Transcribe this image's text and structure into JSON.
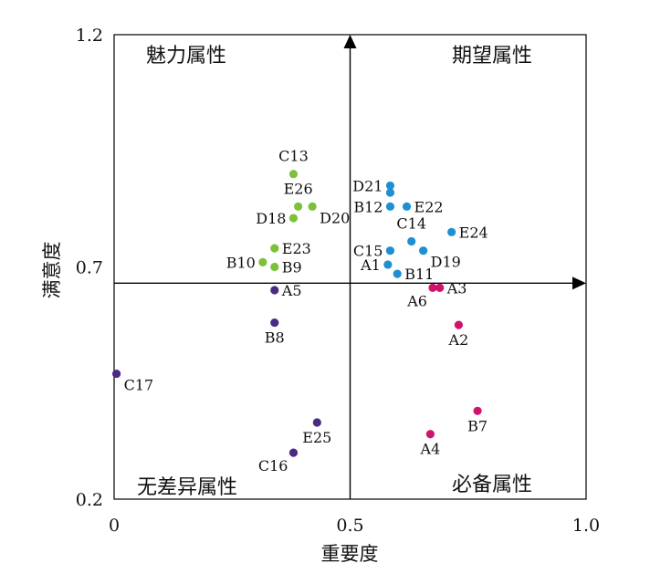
{
  "chart_data": {
    "type": "scatter",
    "xlabel": "重要度",
    "ylabel": "满意度",
    "xlim": [
      0,
      1.0
    ],
    "ylim": [
      0.2,
      1.2
    ],
    "x_ticks": [
      "0",
      "0.5",
      "1.0"
    ],
    "y_ticks": [
      "0.2",
      "0.7",
      "1.2"
    ],
    "grid": false,
    "divider": {
      "x": 0.5,
      "y": 0.665
    },
    "quadrants": {
      "top_left": "魅力属性",
      "top_right": "期望属性",
      "bottom_left": "无差异属性",
      "bottom_right": "必备属性"
    },
    "colors": {
      "attractive": "#7cc13a",
      "one_dimensional": "#1f8fd1",
      "indifferent": "#4a2a82",
      "must_be": "#d0146e"
    },
    "points": [
      {
        "label": "C13",
        "x": 0.38,
        "y": 0.9,
        "group": "attractive",
        "label_pos": "top"
      },
      {
        "label": "E26",
        "x": 0.39,
        "y": 0.83,
        "group": "attractive",
        "label_pos": "top"
      },
      {
        "label": "D18",
        "x": 0.38,
        "y": 0.805,
        "group": "attractive",
        "label_pos": "left"
      },
      {
        "label": "D20",
        "x": 0.42,
        "y": 0.83,
        "group": "attractive",
        "label_pos": "bottom-right"
      },
      {
        "label": "E23",
        "x": 0.34,
        "y": 0.74,
        "group": "attractive",
        "label_pos": "right"
      },
      {
        "label": "B10",
        "x": 0.315,
        "y": 0.71,
        "group": "attractive",
        "label_pos": "left"
      },
      {
        "label": "B9",
        "x": 0.34,
        "y": 0.7,
        "group": "attractive",
        "label_pos": "right"
      },
      {
        "label": "A5",
        "x": 0.34,
        "y": 0.65,
        "group": "indifferent",
        "label_pos": "right"
      },
      {
        "label": "B8",
        "x": 0.34,
        "y": 0.58,
        "group": "indifferent",
        "label_pos": "bottom"
      },
      {
        "label": "C17",
        "x": 0.005,
        "y": 0.47,
        "group": "indifferent",
        "label_pos": "bottom-right"
      },
      {
        "label": "E25",
        "x": 0.43,
        "y": 0.365,
        "group": "indifferent",
        "label_pos": "bottom"
      },
      {
        "label": "C16",
        "x": 0.38,
        "y": 0.3,
        "group": "indifferent",
        "label_pos": "bottom-left"
      },
      {
        "label": "D21",
        "x": 0.585,
        "y": 0.875,
        "group": "one_dimensional",
        "label_pos": "left"
      },
      {
        "label": "",
        "x": 0.585,
        "y": 0.86,
        "group": "one_dimensional",
        "label_pos": "none"
      },
      {
        "label": "E22",
        "x": 0.62,
        "y": 0.83,
        "group": "one_dimensional",
        "label_pos": "right"
      },
      {
        "label": "B12",
        "x": 0.585,
        "y": 0.83,
        "group": "one_dimensional",
        "label_pos": "left"
      },
      {
        "label": "E24",
        "x": 0.715,
        "y": 0.775,
        "group": "one_dimensional",
        "label_pos": "right"
      },
      {
        "label": "C14",
        "x": 0.63,
        "y": 0.755,
        "group": "one_dimensional",
        "label_pos": "top"
      },
      {
        "label": "C15",
        "x": 0.585,
        "y": 0.735,
        "group": "one_dimensional",
        "label_pos": "left"
      },
      {
        "label": "D19",
        "x": 0.655,
        "y": 0.735,
        "group": "one_dimensional",
        "label_pos": "bottom-right"
      },
      {
        "label": "A1",
        "x": 0.58,
        "y": 0.705,
        "group": "one_dimensional",
        "label_pos": "left"
      },
      {
        "label": "B11",
        "x": 0.6,
        "y": 0.685,
        "group": "one_dimensional",
        "label_pos": "right"
      },
      {
        "label": "A6",
        "x": 0.675,
        "y": 0.655,
        "group": "must_be",
        "label_pos": "bottom-left"
      },
      {
        "label": "A3",
        "x": 0.69,
        "y": 0.655,
        "group": "must_be",
        "label_pos": "right"
      },
      {
        "label": "A2",
        "x": 0.73,
        "y": 0.575,
        "group": "must_be",
        "label_pos": "bottom"
      },
      {
        "label": "B7",
        "x": 0.77,
        "y": 0.39,
        "group": "must_be",
        "label_pos": "bottom"
      },
      {
        "label": "A4",
        "x": 0.67,
        "y": 0.34,
        "group": "must_be",
        "label_pos": "bottom"
      }
    ]
  }
}
